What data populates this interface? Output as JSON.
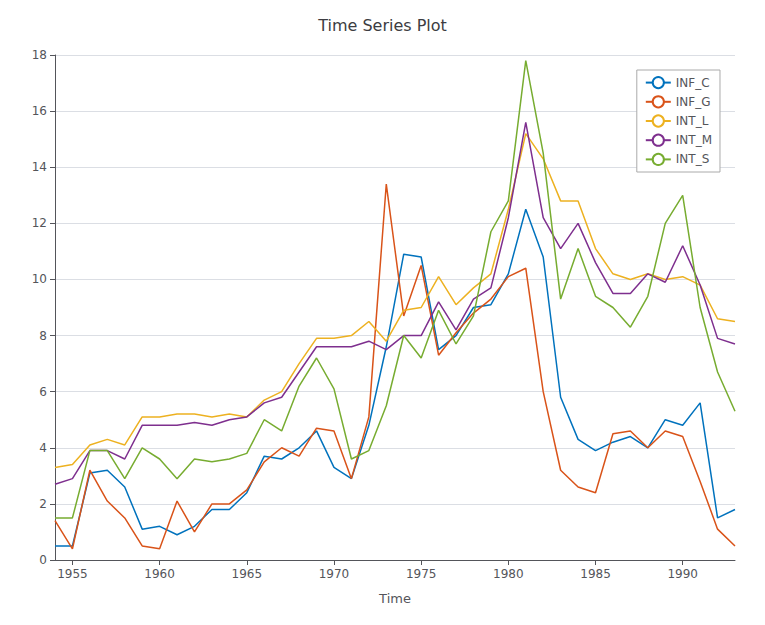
{
  "chart_data": {
    "type": "line",
    "title": "Time Series Plot",
    "xlabel": "Time",
    "x": [
      1954,
      1955,
      1956,
      1957,
      1958,
      1959,
      1960,
      1961,
      1962,
      1963,
      1964,
      1965,
      1966,
      1967,
      1968,
      1969,
      1970,
      1971,
      1972,
      1973,
      1974,
      1975,
      1976,
      1977,
      1978,
      1979,
      1980,
      1981,
      1982,
      1983,
      1984,
      1985,
      1986,
      1987,
      1988,
      1989,
      1990,
      1991,
      1992,
      1993
    ],
    "series": [
      {
        "name": "INF_C",
        "color": "#0072BD",
        "values": [
          0.5,
          0.5,
          3.1,
          3.2,
          2.6,
          1.1,
          1.2,
          0.9,
          1.2,
          1.8,
          1.8,
          2.4,
          3.7,
          3.6,
          4.0,
          4.6,
          3.3,
          2.9,
          4.8,
          7.6,
          10.9,
          10.8,
          7.5,
          8.0,
          9.0,
          9.1,
          10.2,
          12.5,
          10.8,
          5.8,
          4.3,
          3.9,
          4.2,
          4.4,
          4.0,
          5.0,
          4.8,
          5.6,
          1.5,
          1.8
        ]
      },
      {
        "name": "INF_G",
        "color": "#D95319",
        "values": [
          1.4,
          0.4,
          3.2,
          2.1,
          1.5,
          0.5,
          0.4,
          2.1,
          1.0,
          2.0,
          2.0,
          2.5,
          3.5,
          4.0,
          3.7,
          4.7,
          4.6,
          2.9,
          5.1,
          13.4,
          8.7,
          10.5,
          7.3,
          8.1,
          8.8,
          9.3,
          10.1,
          10.4,
          6.0,
          3.2,
          2.6,
          2.4,
          4.5,
          4.6,
          4.0,
          4.6,
          4.4,
          2.8,
          1.1,
          0.5
        ]
      },
      {
        "name": "INT_L",
        "color": "#EDB120",
        "values": [
          3.3,
          3.4,
          4.1,
          4.3,
          4.1,
          5.1,
          5.1,
          5.2,
          5.2,
          5.1,
          5.2,
          5.1,
          5.7,
          6.0,
          7.0,
          7.9,
          7.9,
          8.0,
          8.5,
          7.8,
          8.9,
          9.0,
          10.1,
          9.1,
          9.7,
          10.2,
          12.5,
          15.2,
          14.3,
          12.8,
          12.8,
          11.1,
          10.2,
          10.0,
          10.2,
          10.0,
          10.1,
          9.8,
          8.6,
          8.5
        ]
      },
      {
        "name": "INT_M",
        "color": "#7E2F8E",
        "values": [
          2.7,
          2.9,
          3.9,
          3.9,
          3.6,
          4.8,
          4.8,
          4.8,
          4.9,
          4.8,
          5.0,
          5.1,
          5.6,
          5.8,
          6.7,
          7.6,
          7.6,
          7.6,
          7.8,
          7.5,
          8.0,
          8.0,
          9.2,
          8.2,
          9.3,
          9.7,
          12.2,
          15.6,
          12.2,
          11.1,
          12.0,
          10.6,
          9.5,
          9.5,
          10.2,
          9.9,
          11.2,
          9.8,
          7.9,
          7.7
        ]
      },
      {
        "name": "INT_S",
        "color": "#77AC30",
        "values": [
          1.5,
          1.5,
          3.9,
          3.9,
          2.9,
          4.0,
          3.6,
          2.9,
          3.6,
          3.5,
          3.6,
          3.8,
          5.0,
          4.6,
          6.2,
          7.2,
          6.1,
          3.6,
          3.9,
          5.5,
          8.0,
          7.2,
          8.9,
          7.7,
          8.7,
          11.7,
          12.8,
          17.8,
          14.5,
          9.3,
          11.1,
          9.4,
          9.0,
          8.3,
          9.4,
          12.0,
          13.0,
          9.0,
          6.7,
          5.3
        ]
      }
    ],
    "xlim": [
      1954,
      1993
    ],
    "xticks": [
      1955,
      1960,
      1965,
      1970,
      1975,
      1980,
      1985,
      1990
    ],
    "ylim": [
      0,
      18
    ],
    "yticks": [
      0,
      2,
      4,
      6,
      8,
      10,
      12,
      14,
      16,
      18
    ],
    "grid": true,
    "legend": "upper right"
  }
}
